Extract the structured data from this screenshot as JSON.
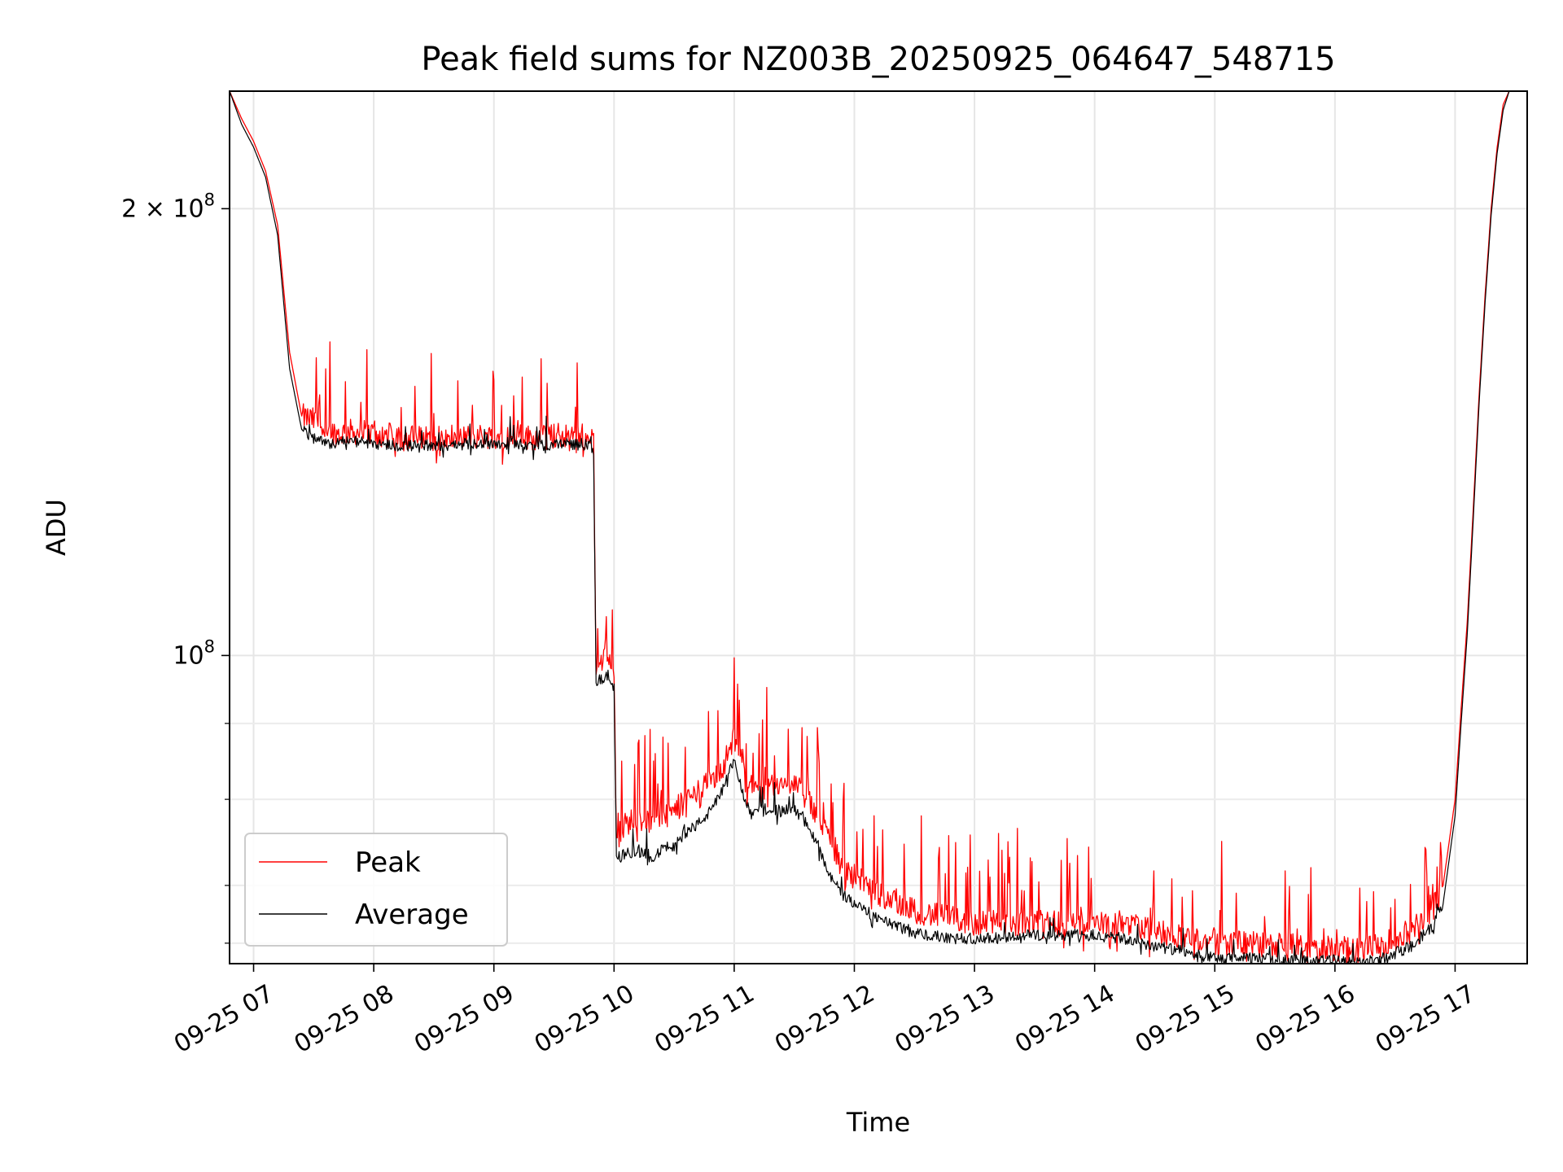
{
  "chart_data": {
    "type": "line",
    "title": "Peak field sums for NZ003B_20250925_064647_548715",
    "xlabel": "Time",
    "ylabel": "ADU",
    "yscale": "log",
    "grid": true,
    "legend_position": "lower-left",
    "xlim": [
      6.8,
      17.6
    ],
    "ylim": [
      62000000,
      240000000
    ],
    "x_ticks": [
      {
        "value": 7,
        "label": "09-25 07"
      },
      {
        "value": 8,
        "label": "09-25 08"
      },
      {
        "value": 9,
        "label": "09-25 09"
      },
      {
        "value": 10,
        "label": "09-25 10"
      },
      {
        "value": 11,
        "label": "09-25 11"
      },
      {
        "value": 12,
        "label": "09-25 12"
      },
      {
        "value": 13,
        "label": "09-25 13"
      },
      {
        "value": 14,
        "label": "09-25 14"
      },
      {
        "value": 15,
        "label": "09-25 15"
      },
      {
        "value": 16,
        "label": "09-25 16"
      },
      {
        "value": 17,
        "label": "09-25 17"
      }
    ],
    "y_ticks": [
      {
        "value": 200000000,
        "mantissa": "2 × 10",
        "exponent": "8"
      },
      {
        "value": 100000000,
        "mantissa": "10",
        "exponent": "8"
      }
    ],
    "y_minor_ticks": [
      90000000,
      80000000,
      70000000,
      64000000
    ],
    "x_unit": "hour of 2025-09-25",
    "series": [
      {
        "name": "Peak",
        "color": "#ff0000",
        "x": [
          6.8,
          6.9,
          7.0,
          7.1,
          7.2,
          7.3,
          7.4,
          7.5,
          7.6,
          7.7,
          7.8,
          8.0,
          8.2,
          8.4,
          8.6,
          8.8,
          9.0,
          9.2,
          9.4,
          9.6,
          9.8,
          9.83,
          9.85,
          9.9,
          9.95,
          10.0,
          10.02,
          10.1,
          10.2,
          10.3,
          10.4,
          10.5,
          10.6,
          10.7,
          10.8,
          10.9,
          11.0,
          11.05,
          11.1,
          11.2,
          11.3,
          11.4,
          11.5,
          11.6,
          11.7,
          11.8,
          11.9,
          12.0,
          12.2,
          12.4,
          12.6,
          12.8,
          13.0,
          13.2,
          13.4,
          13.6,
          13.8,
          14.0,
          14.2,
          14.4,
          14.6,
          14.8,
          15.0,
          15.2,
          15.4,
          15.6,
          15.8,
          16.0,
          16.2,
          16.4,
          16.6,
          16.8,
          16.9,
          17.0,
          17.05,
          17.1,
          17.15,
          17.2,
          17.25,
          17.3,
          17.35,
          17.4,
          17.45,
          17.5,
          17.6
        ],
        "values": [
          240000000,
          230000000,
          222000000,
          212000000,
          195000000,
          160000000,
          145000000,
          144000000,
          142000000,
          141000000,
          141500000,
          141000000,
          140500000,
          140000000,
          140000000,
          140500000,
          140500000,
          140500000,
          140000000,
          141000000,
          140500000,
          139000000,
          98000000,
          99000000,
          100000000,
          97000000,
          76000000,
          77000000,
          78000000,
          77000000,
          78000000,
          78500000,
          80000000,
          81000000,
          82000000,
          84000000,
          88000000,
          86000000,
          82000000,
          81000000,
          82000000,
          81500000,
          82000000,
          80000000,
          78000000,
          75000000,
          72000000,
          71000000,
          69000000,
          68000000,
          67000000,
          66500000,
          66000000,
          66000000,
          66000000,
          66000000,
          66000000,
          66000000,
          66000000,
          65500000,
          65000000,
          64500000,
          64000000,
          64000000,
          63800000,
          63800000,
          63500000,
          63500000,
          63300000,
          63800000,
          65000000,
          67000000,
          70000000,
          80000000,
          92000000,
          105000000,
          125000000,
          150000000,
          175000000,
          200000000,
          220000000,
          235000000,
          240000000,
          240000000,
          240000000
        ]
      },
      {
        "name": "Average",
        "color": "#000000",
        "x": [
          6.8,
          6.9,
          7.0,
          7.1,
          7.2,
          7.3,
          7.4,
          7.5,
          7.6,
          7.7,
          7.8,
          8.0,
          8.2,
          8.4,
          8.6,
          8.8,
          9.0,
          9.2,
          9.4,
          9.6,
          9.8,
          9.83,
          9.85,
          9.9,
          9.95,
          10.0,
          10.02,
          10.1,
          10.2,
          10.3,
          10.4,
          10.5,
          10.6,
          10.7,
          10.8,
          10.9,
          11.0,
          11.05,
          11.1,
          11.2,
          11.3,
          11.4,
          11.5,
          11.6,
          11.7,
          11.8,
          11.9,
          12.0,
          12.2,
          12.4,
          12.6,
          12.8,
          13.0,
          13.2,
          13.4,
          13.6,
          13.8,
          14.0,
          14.2,
          14.4,
          14.6,
          14.8,
          15.0,
          15.2,
          15.4,
          15.6,
          15.8,
          16.0,
          16.2,
          16.4,
          16.6,
          16.8,
          16.9,
          17.0,
          17.05,
          17.1,
          17.15,
          17.2,
          17.25,
          17.3,
          17.35,
          17.4,
          17.45,
          17.5,
          17.6
        ],
        "values": [
          240000000,
          228000000,
          220000000,
          210000000,
          192000000,
          156000000,
          142000000,
          140000000,
          139000000,
          139000000,
          139500000,
          139000000,
          138500000,
          138500000,
          138500000,
          139000000,
          139000000,
          139000000,
          138500000,
          139000000,
          138500000,
          137000000,
          96000000,
          96500000,
          97000000,
          95000000,
          73000000,
          73500000,
          74000000,
          73000000,
          74000000,
          74500000,
          76000000,
          77000000,
          78500000,
          81000000,
          85000000,
          82000000,
          79000000,
          78500000,
          79000000,
          78500000,
          79000000,
          77000000,
          74500000,
          71000000,
          69000000,
          68000000,
          66500000,
          65500000,
          64800000,
          64500000,
          64500000,
          64500000,
          64800000,
          64800000,
          64800000,
          64800000,
          64500000,
          64000000,
          63500000,
          63000000,
          62500000,
          62500000,
          62500000,
          62300000,
          62300000,
          62300000,
          62000000,
          62500000,
          63500000,
          65500000,
          68000000,
          78000000,
          90000000,
          103000000,
          123000000,
          148000000,
          173000000,
          198000000,
          218000000,
          233000000,
          240000000,
          240000000,
          240000000
        ]
      }
    ]
  }
}
